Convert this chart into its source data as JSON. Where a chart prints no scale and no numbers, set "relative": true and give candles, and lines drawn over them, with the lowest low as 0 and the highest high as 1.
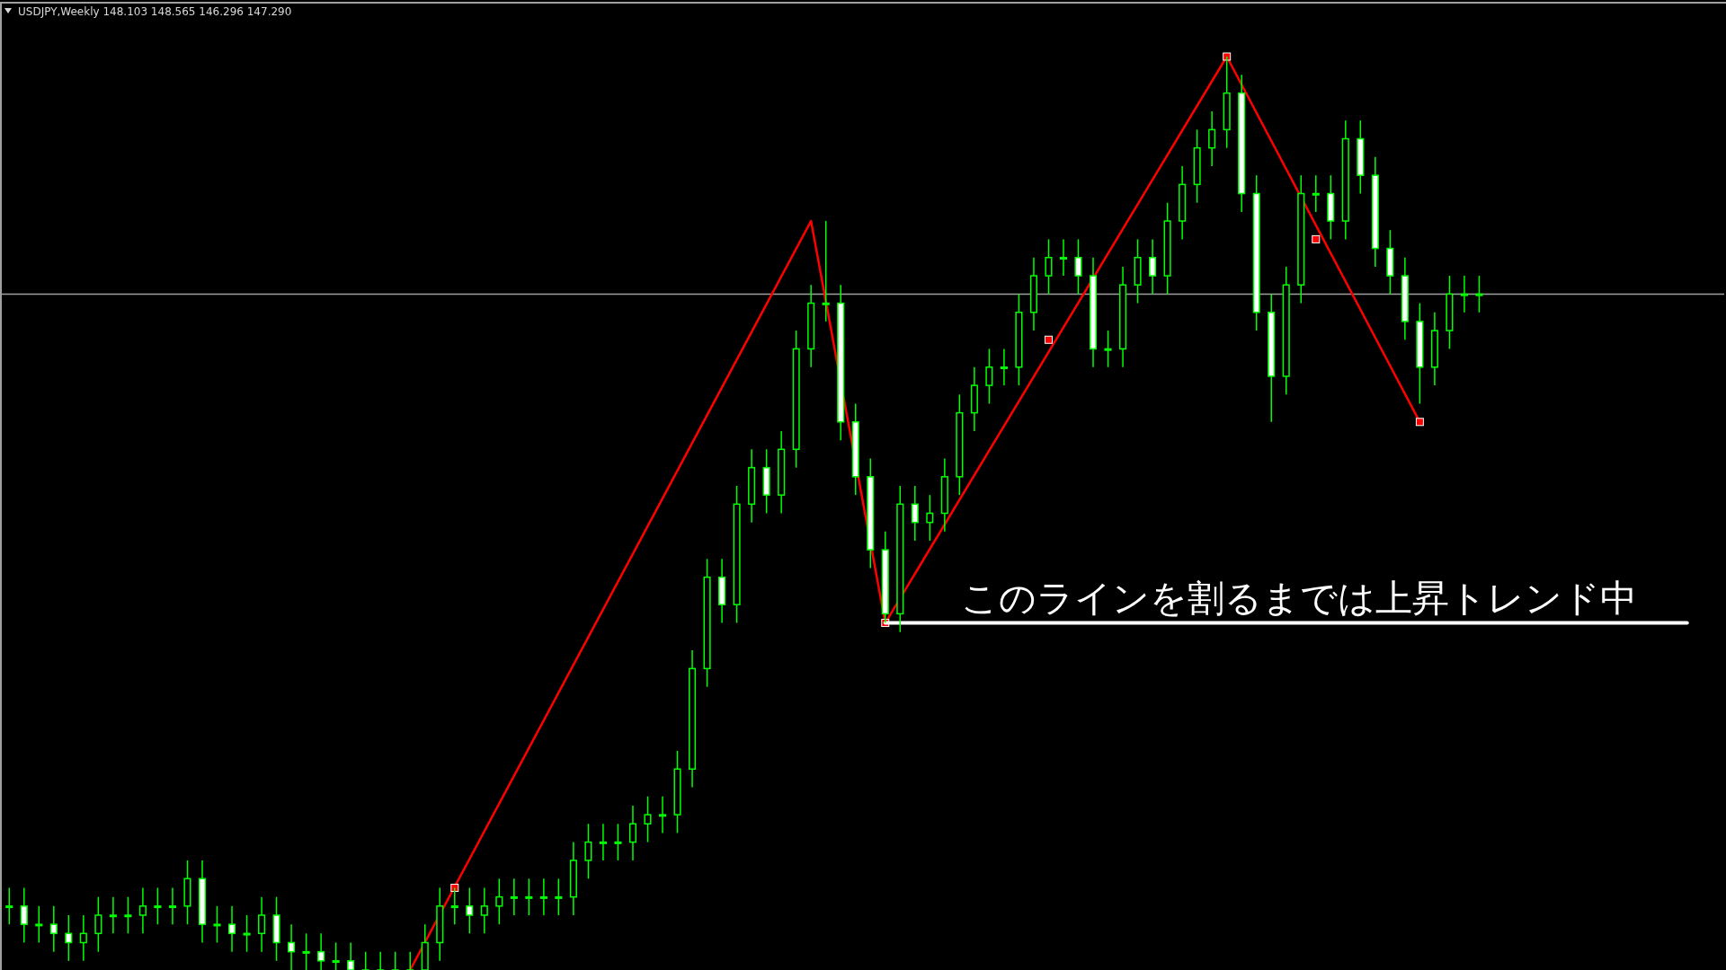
{
  "chart_data": {
    "type": "candlestick",
    "title": "USDJPY,Weekly  148.103 148.565 146.296 147.290",
    "relative": true,
    "color": "#00ff00",
    "categories": [
      null,
      null,
      null,
      null,
      null,
      null,
      null,
      null,
      null,
      null,
      null,
      null,
      null,
      null,
      null,
      null,
      null,
      null,
      null,
      null,
      null,
      null,
      null,
      null,
      null,
      null,
      null,
      null,
      null,
      null,
      null,
      null,
      null,
      null,
      null,
      null,
      null,
      null,
      null,
      null,
      null,
      null,
      null,
      null,
      null,
      null,
      null,
      null,
      null,
      null,
      null,
      null,
      null,
      null,
      null,
      null,
      null,
      null,
      null,
      null,
      null,
      null,
      null,
      null,
      null,
      null,
      null,
      null,
      null,
      null,
      null,
      null,
      null,
      null,
      null,
      null,
      null,
      null,
      null,
      null,
      null,
      null,
      null,
      null,
      null,
      null,
      null,
      null,
      null,
      null,
      null,
      null,
      null,
      null,
      null,
      null,
      null,
      null,
      null,
      null,
      null,
      null,
      null,
      null,
      null,
      null,
      null,
      null,
      null,
      null,
      null,
      null,
      null,
      null,
      null,
      null
    ],
    "ohlc": [
      [
        0.07,
        0.09,
        0.05,
        0.07
      ],
      [
        0.07,
        0.09,
        0.03,
        0.05
      ],
      [
        0.05,
        0.07,
        0.03,
        0.05
      ],
      [
        0.05,
        0.07,
        0.02,
        0.04
      ],
      [
        0.04,
        0.06,
        0.01,
        0.03
      ],
      [
        0.03,
        0.06,
        0.01,
        0.04
      ],
      [
        0.04,
        0.08,
        0.02,
        0.06
      ],
      [
        0.06,
        0.08,
        0.04,
        0.06
      ],
      [
        0.06,
        0.08,
        0.04,
        0.06
      ],
      [
        0.06,
        0.09,
        0.04,
        0.07
      ],
      [
        0.07,
        0.09,
        0.05,
        0.07
      ],
      [
        0.07,
        0.09,
        0.05,
        0.07
      ],
      [
        0.07,
        0.12,
        0.05,
        0.1
      ],
      [
        0.1,
        0.12,
        0.03,
        0.05
      ],
      [
        0.05,
        0.07,
        0.03,
        0.05
      ],
      [
        0.05,
        0.07,
        0.02,
        0.04
      ],
      [
        0.04,
        0.06,
        0.02,
        0.04
      ],
      [
        0.04,
        0.08,
        0.02,
        0.06
      ],
      [
        0.06,
        0.08,
        0.01,
        0.03
      ],
      [
        0.03,
        0.05,
        0,
        0.02
      ],
      [
        0.02,
        0.04,
        0,
        0.02
      ],
      [
        0.02,
        0.04,
        0,
        0.01
      ],
      [
        0.01,
        0.03,
        0,
        0.01
      ],
      [
        0.01,
        0.03,
        0,
        0
      ],
      [
        0,
        0.02,
        0,
        0
      ],
      [
        0,
        0.02,
        0,
        0
      ],
      [
        0,
        0.02,
        0,
        0
      ],
      [
        0,
        0.02,
        0,
        0
      ],
      [
        0,
        0.05,
        0,
        0.03
      ],
      [
        0.03,
        0.09,
        0.01,
        0.07
      ],
      [
        0.07,
        0.09,
        0.05,
        0.07
      ],
      [
        0.07,
        0.09,
        0.04,
        0.06
      ],
      [
        0.06,
        0.09,
        0.04,
        0.07
      ],
      [
        0.07,
        0.1,
        0.05,
        0.08
      ],
      [
        0.08,
        0.1,
        0.06,
        0.08
      ],
      [
        0.08,
        0.1,
        0.06,
        0.08
      ],
      [
        0.08,
        0.1,
        0.06,
        0.08
      ],
      [
        0.08,
        0.1,
        0.06,
        0.08
      ],
      [
        0.08,
        0.14,
        0.06,
        0.12
      ],
      [
        0.12,
        0.16,
        0.1,
        0.14
      ],
      [
        0.14,
        0.16,
        0.12,
        0.14
      ],
      [
        0.14,
        0.16,
        0.12,
        0.14
      ],
      [
        0.14,
        0.18,
        0.12,
        0.16
      ],
      [
        0.16,
        0.19,
        0.14,
        0.17
      ],
      [
        0.17,
        0.19,
        0.15,
        0.17
      ],
      [
        0.17,
        0.24,
        0.15,
        0.22
      ],
      [
        0.22,
        0.35,
        0.2,
        0.33
      ],
      [
        0.33,
        0.45,
        0.31,
        0.43
      ],
      [
        0.43,
        0.45,
        0.38,
        0.4
      ],
      [
        0.4,
        0.53,
        0.38,
        0.51
      ],
      [
        0.51,
        0.57,
        0.49,
        0.55
      ],
      [
        0.55,
        0.57,
        0.5,
        0.52
      ],
      [
        0.52,
        0.59,
        0.5,
        0.57
      ],
      [
        0.57,
        0.7,
        0.55,
        0.68
      ],
      [
        0.68,
        0.75,
        0.66,
        0.73
      ],
      [
        0.73,
        0.82,
        0.71,
        0.73
      ],
      [
        0.73,
        0.75,
        0.58,
        0.6
      ],
      [
        0.6,
        0.62,
        0.52,
        0.54
      ],
      [
        0.54,
        0.56,
        0.44,
        0.46
      ],
      [
        0.46,
        0.48,
        0.38,
        0.39
      ],
      [
        0.39,
        0.53,
        0.37,
        0.51
      ],
      [
        0.51,
        0.53,
        0.47,
        0.49
      ],
      [
        0.49,
        0.52,
        0.47,
        0.5
      ],
      [
        0.5,
        0.56,
        0.48,
        0.54
      ],
      [
        0.54,
        0.63,
        0.52,
        0.61
      ],
      [
        0.61,
        0.66,
        0.59,
        0.64
      ],
      [
        0.64,
        0.68,
        0.62,
        0.66
      ],
      [
        0.66,
        0.68,
        0.64,
        0.66
      ],
      [
        0.66,
        0.74,
        0.64,
        0.72
      ],
      [
        0.72,
        0.78,
        0.7,
        0.76
      ],
      [
        0.76,
        0.8,
        0.74,
        0.78
      ],
      [
        0.78,
        0.8,
        0.76,
        0.78
      ],
      [
        0.78,
        0.8,
        0.74,
        0.76
      ],
      [
        0.76,
        0.78,
        0.66,
        0.68
      ],
      [
        0.68,
        0.7,
        0.66,
        0.68
      ],
      [
        0.68,
        0.77,
        0.66,
        0.75
      ],
      [
        0.75,
        0.8,
        0.73,
        0.78
      ],
      [
        0.78,
        0.8,
        0.74,
        0.76
      ],
      [
        0.76,
        0.84,
        0.74,
        0.82
      ],
      [
        0.82,
        0.88,
        0.8,
        0.86
      ],
      [
        0.86,
        0.92,
        0.84,
        0.9
      ],
      [
        0.9,
        0.94,
        0.88,
        0.92
      ],
      [
        0.92,
        1,
        0.9,
        0.96
      ],
      [
        0.96,
        0.98,
        0.83,
        0.85
      ],
      [
        0.85,
        0.87,
        0.7,
        0.72
      ],
      [
        0.72,
        0.74,
        0.6,
        0.65
      ],
      [
        0.65,
        0.77,
        0.63,
        0.75
      ],
      [
        0.75,
        0.87,
        0.73,
        0.85
      ],
      [
        0.85,
        0.87,
        0.83,
        0.85
      ],
      [
        0.85,
        0.87,
        0.8,
        0.82
      ],
      [
        0.82,
        0.93,
        0.8,
        0.91
      ],
      [
        0.91,
        0.93,
        0.85,
        0.87
      ],
      [
        0.87,
        0.89,
        0.77,
        0.79
      ],
      [
        0.79,
        0.81,
        0.74,
        0.76
      ],
      [
        0.76,
        0.78,
        0.69,
        0.71
      ],
      [
        0.71,
        0.73,
        0.62,
        0.66
      ],
      [
        0.66,
        0.72,
        0.64,
        0.7
      ],
      [
        0.7,
        0.76,
        0.68,
        0.74
      ],
      [
        0.74,
        0.76,
        0.72,
        0.74
      ],
      [
        0.74,
        0.76,
        0.72,
        0.74
      ],
      null,
      null,
      null,
      null,
      null,
      null,
      null,
      null,
      null,
      null,
      null,
      null,
      null,
      null,
      null,
      null
    ],
    "series": [
      {
        "type": "line",
        "color": "#ff0000",
        "values": [
          null,
          null,
          null,
          null,
          null,
          null,
          null,
          null,
          null,
          null,
          null,
          null,
          null,
          null,
          null,
          null,
          null,
          null,
          null,
          null,
          null,
          null,
          null,
          null,
          null,
          null,
          null,
          0,
          null,
          null,
          null,
          null,
          null,
          null,
          null,
          null,
          null,
          null,
          null,
          null,
          null,
          null,
          null,
          null,
          null,
          null,
          null,
          null,
          null,
          null,
          null,
          null,
          null,
          null,
          0.82,
          null,
          null,
          null,
          null,
          0.38,
          null,
          null,
          null,
          null,
          null,
          null,
          null,
          null,
          null,
          null,
          null,
          null,
          null,
          null,
          null,
          null,
          null,
          null,
          null,
          null,
          null,
          null,
          1,
          null,
          null,
          null,
          null,
          null,
          null,
          null,
          null,
          null,
          null,
          null,
          null,
          0.6,
          null,
          null,
          null,
          null,
          null,
          null,
          null,
          null,
          null,
          null,
          null,
          null,
          null,
          null,
          null,
          null,
          null,
          null,
          null,
          null
        ]
      },
      {
        "type": "scatter",
        "color": "#ff0000",
        "marker": "square",
        "values": [
          null,
          null,
          null,
          null,
          null,
          null,
          null,
          null,
          null,
          null,
          null,
          null,
          null,
          null,
          null,
          null,
          null,
          null,
          null,
          null,
          null,
          null,
          null,
          null,
          null,
          null,
          null,
          null,
          null,
          null,
          0.09,
          null,
          null,
          null,
          null,
          null,
          null,
          null,
          null,
          null,
          null,
          null,
          null,
          null,
          null,
          null,
          null,
          null,
          null,
          null,
          null,
          null,
          null,
          null,
          null,
          null,
          null,
          null,
          null,
          0.38,
          null,
          null,
          null,
          null,
          null,
          null,
          null,
          null,
          null,
          null,
          0.69,
          null,
          null,
          null,
          null,
          null,
          null,
          null,
          null,
          null,
          null,
          null,
          1,
          null,
          null,
          null,
          null,
          null,
          0.8,
          null,
          null,
          null,
          null,
          null,
          null,
          0.6,
          null,
          null,
          null,
          null,
          null,
          null,
          null,
          null,
          null,
          null,
          null,
          null,
          null,
          null,
          null,
          null,
          null,
          null,
          null,
          null
        ]
      },
      {
        "type": "line",
        "color": "#ffffff",
        "values": [
          null,
          null,
          null,
          null,
          null,
          null,
          null,
          null,
          null,
          null,
          null,
          null,
          null,
          null,
          null,
          null,
          null,
          null,
          null,
          null,
          null,
          null,
          null,
          null,
          null,
          null,
          null,
          null,
          null,
          null,
          null,
          null,
          null,
          null,
          null,
          null,
          null,
          null,
          null,
          null,
          null,
          null,
          null,
          null,
          null,
          null,
          null,
          null,
          null,
          null,
          null,
          null,
          null,
          null,
          null,
          null,
          null,
          null,
          null,
          0.38,
          null,
          null,
          null,
          null,
          null,
          null,
          null,
          null,
          null,
          null,
          null,
          null,
          null,
          null,
          null,
          null,
          null,
          null,
          null,
          null,
          null,
          null,
          null,
          null,
          null,
          null,
          null,
          null,
          null,
          null,
          null,
          null,
          null,
          null,
          null,
          null,
          null,
          null,
          null,
          null,
          null,
          null,
          null,
          null,
          null,
          null,
          null,
          null,
          null,
          null,
          null,
          null,
          null,
          0.38,
          null,
          null
        ]
      }
    ],
    "ref_lines": [
      {
        "axis": "y",
        "value": 0.74,
        "color": "#a0a0a0"
      }
    ],
    "annotations": [
      "このラインを割るまでは上昇トレンド中"
    ]
  }
}
